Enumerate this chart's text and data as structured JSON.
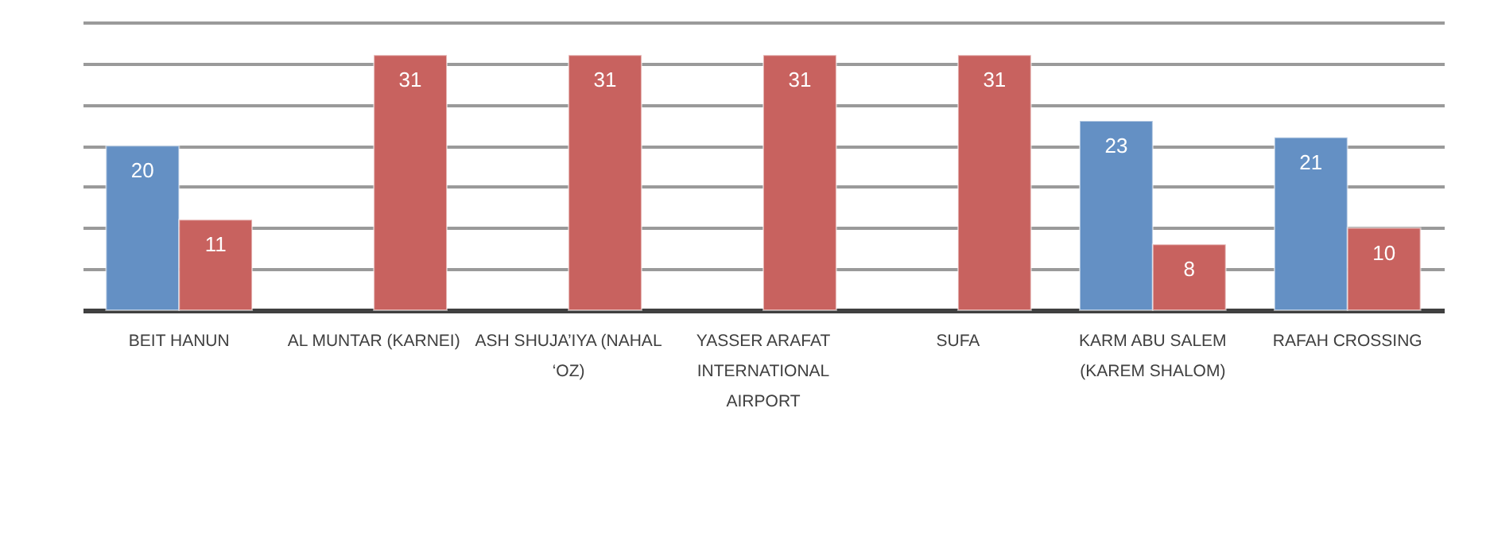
{
  "chart_data": {
    "type": "bar",
    "categories": [
      "BEIT HANUN",
      "AL MUNTAR (KARNEI)",
      "ASH SHUJA’IYA (NAHAL ‘OZ)",
      "YASSER ARAFAT INTERNATIONAL AIRPORT",
      "SUFA",
      "KARM ABU SALEM (KAREM SHALOM)",
      "RAFAH CROSSING"
    ],
    "series": [
      {
        "color": "#6490c4",
        "values": [
          20,
          null,
          null,
          null,
          null,
          23,
          21
        ]
      },
      {
        "color": "#c8625f",
        "values": [
          11,
          31,
          31,
          31,
          31,
          8,
          10
        ]
      }
    ],
    "tick_labels": "x",
    "grid": "y",
    "legend": false,
    "data_labels": true
  }
}
